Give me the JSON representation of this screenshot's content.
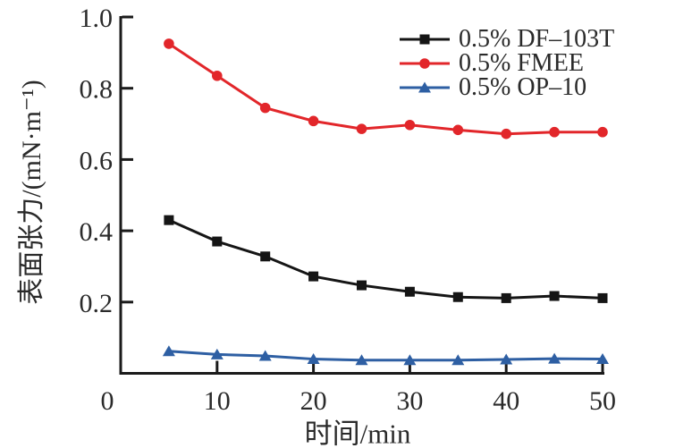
{
  "chart_data": {
    "type": "line",
    "title": "",
    "xlabel": "时间/min",
    "ylabel": "表面张力/(mN·m⁻¹)",
    "xlim": [
      0,
      50
    ],
    "ylim": [
      0,
      1.0
    ],
    "grid": false,
    "legend_position": "top-right",
    "xticks": {
      "values": [
        0,
        10,
        20,
        30,
        40,
        50
      ],
      "labels": [
        "0",
        "10",
        "20",
        "30",
        "40",
        "50"
      ]
    },
    "yticks": {
      "values": [
        0.2,
        0.4,
        0.6,
        0.8,
        1.0
      ],
      "labels": [
        "0.2",
        "0.4",
        "0.6",
        "0.8",
        "1.0"
      ]
    },
    "x": [
      5,
      10,
      15,
      20,
      25,
      30,
      35,
      40,
      45,
      50
    ],
    "series": [
      {
        "id": "df-103t",
        "name": "0.5% DF–103T",
        "color": "#151515",
        "marker": "square",
        "values": [
          0.43,
          0.37,
          0.328,
          0.272,
          0.247,
          0.229,
          0.214,
          0.211,
          0.217,
          0.211
        ]
      },
      {
        "id": "fmee",
        "name": "0.5% FMEE",
        "color": "#e2262a",
        "marker": "circle",
        "values": [
          0.925,
          0.835,
          0.745,
          0.708,
          0.686,
          0.697,
          0.683,
          0.672,
          0.677,
          0.677
        ]
      },
      {
        "id": "op-10",
        "name": "0.5% OP–10",
        "color": "#2e5fa3",
        "marker": "triangle",
        "values": [
          0.062,
          0.053,
          0.049,
          0.04,
          0.037,
          0.037,
          0.037,
          0.039,
          0.041,
          0.04
        ]
      }
    ],
    "colors": {
      "axis": "#1a1a1a",
      "text": "#2a2a2a"
    }
  }
}
